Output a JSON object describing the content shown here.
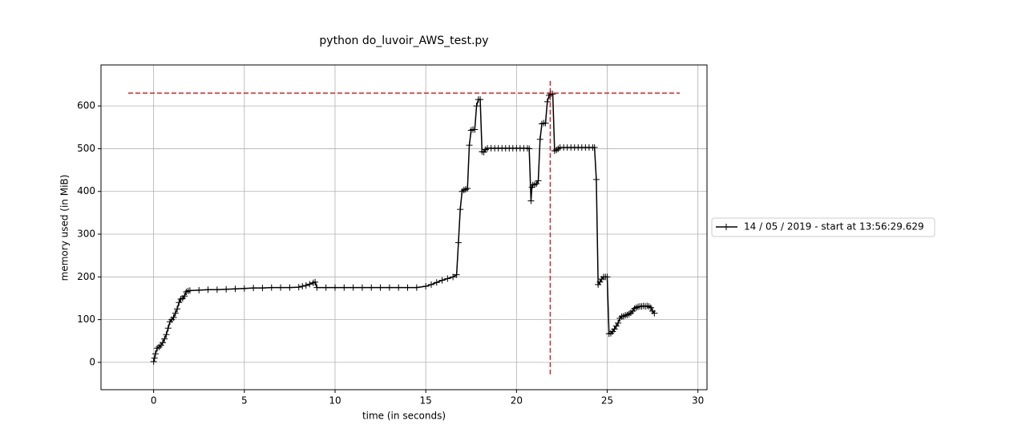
{
  "chart_data": {
    "type": "line",
    "title": "python do_luvoir_AWS_test.py",
    "x_label": "time (in seconds)",
    "y_label": "memory used (in MiB)",
    "xlim": [
      -2.9,
      30.5
    ],
    "ylim": [
      -64,
      696
    ],
    "xticks": [
      0,
      5,
      10,
      15,
      20,
      25,
      30
    ],
    "yticks": [
      0,
      100,
      200,
      300,
      400,
      500,
      600
    ],
    "grid": true,
    "legend": "right-outside",
    "series": [
      {
        "name": "14 / 05 / 2019 - start at 13:56:29.629",
        "color": "#000000",
        "x": [
          0,
          0.05,
          0.1,
          0.2,
          0.3,
          0.4,
          0.5,
          0.6,
          0.7,
          0.8,
          0.9,
          1.0,
          1.1,
          1.2,
          1.3,
          1.4,
          1.5,
          1.6,
          1.7,
          1.8,
          1.9,
          2.0,
          2.5,
          3,
          3.5,
          4,
          4.5,
          5,
          5.5,
          6,
          6.5,
          7,
          7.5,
          8.0,
          8.2,
          8.4,
          8.6,
          8.8,
          8.9,
          9.0,
          9.5,
          10,
          10.5,
          11,
          11.5,
          12,
          12.5,
          13,
          13.5,
          14,
          14.5,
          15.0,
          15.3,
          15.6,
          15.9,
          16.2,
          16.5,
          16.7,
          16.8,
          16.9,
          17.0,
          17.1,
          17.2,
          17.3,
          17.4,
          17.5,
          17.6,
          17.7,
          17.8,
          17.9,
          18.0,
          18.1,
          18.2,
          18.3,
          18.4,
          18.6,
          18.8,
          19.0,
          19.2,
          19.4,
          19.6,
          19.8,
          20.0,
          20.2,
          20.4,
          20.6,
          20.7,
          20.8,
          20.85,
          20.9,
          21.0,
          21.1,
          21.2,
          21.3,
          21.4,
          21.5,
          21.6,
          21.7,
          21.8,
          21.9,
          22.0,
          22.1,
          22.2,
          22.3,
          22.4,
          22.6,
          22.8,
          23.0,
          23.2,
          23.4,
          23.6,
          23.8,
          24.0,
          24.2,
          24.3,
          24.4,
          24.5,
          24.6,
          24.7,
          24.8,
          24.9,
          25.0,
          25.1,
          25.2,
          25.3,
          25.4,
          25.5,
          25.6,
          25.7,
          25.8,
          25.9,
          26.0,
          26.1,
          26.2,
          26.3,
          26.4,
          26.5,
          26.6,
          26.7,
          26.8,
          26.9,
          27.0,
          27.1,
          27.2,
          27.3,
          27.4,
          27.5,
          27.6
        ],
        "values": [
          2,
          10,
          20,
          33,
          36,
          40,
          46,
          55,
          65,
          80,
          95,
          100,
          105,
          115,
          125,
          140,
          148,
          150,
          155,
          165,
          167,
          168,
          169,
          170,
          170,
          171,
          172,
          173,
          174,
          174,
          175,
          175,
          175,
          176,
          178,
          180,
          183,
          186,
          188,
          175,
          175,
          175,
          175,
          175,
          175,
          175,
          175,
          175,
          175,
          175,
          175,
          178,
          182,
          187,
          192,
          196,
          200,
          205,
          280,
          358,
          400,
          403,
          405,
          407,
          508,
          543,
          545,
          545,
          600,
          615,
          615,
          493,
          492,
          498,
          501,
          501,
          501,
          501,
          501,
          501,
          501,
          501,
          501,
          501,
          501,
          501,
          500,
          378,
          410,
          415,
          416,
          418,
          425,
          522,
          558,
          560,
          560,
          610,
          625,
          628,
          628,
          495,
          497,
          500,
          503,
          503,
          503,
          503,
          503,
          503,
          503,
          503,
          503,
          503,
          503,
          428,
          182,
          188,
          195,
          200,
          200,
          200,
          67,
          68,
          72,
          78,
          85,
          92,
          103,
          107,
          108,
          110,
          111,
          113,
          116,
          120,
          126,
          128,
          130,
          131,
          131,
          132,
          131,
          132,
          131,
          128,
          120,
          115
        ]
      }
    ],
    "reference_lines": [
      {
        "y": 630,
        "xmin": -1.4,
        "xmax": 29,
        "color": "#d62728"
      },
      {
        "x": 21.86,
        "ymin": -28,
        "ymax": 662,
        "color": "#d62728"
      }
    ]
  }
}
